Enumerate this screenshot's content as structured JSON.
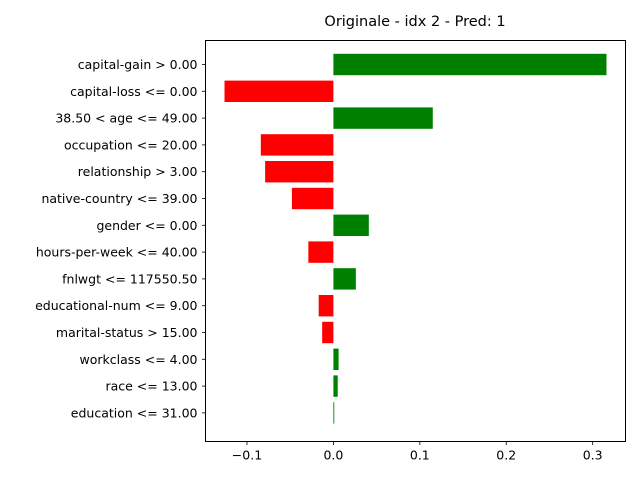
{
  "chart_data": {
    "type": "bar",
    "orientation": "horizontal",
    "title": "Originale - idx 2 - Pred: 1",
    "xlabel": "",
    "ylabel": "",
    "xlim": [
      -0.148,
      0.338
    ],
    "xticks": [
      -0.1,
      0.0,
      0.1,
      0.2,
      0.3
    ],
    "xtick_labels": [
      "−0.1",
      "0.0",
      "0.1",
      "0.2",
      "0.3"
    ],
    "grid": false,
    "positive_color": "#008000",
    "negative_color": "#ff0000",
    "categories": [
      "capital-gain > 0.00",
      "capital-loss <= 0.00",
      "38.50 < age <= 49.00",
      "occupation <= 20.00",
      "relationship > 3.00",
      "native-country <= 39.00",
      "gender <= 0.00",
      "hours-per-week <= 40.00",
      "fnlwgt <= 117550.50",
      "educational-num <= 9.00",
      "marital-status > 15.00",
      "workclass <= 4.00",
      "race <= 13.00",
      "education <= 31.00"
    ],
    "values": [
      0.316,
      -0.126,
      0.115,
      -0.084,
      -0.079,
      -0.048,
      0.041,
      -0.029,
      0.026,
      -0.017,
      -0.013,
      0.006,
      0.005,
      0.001
    ]
  }
}
